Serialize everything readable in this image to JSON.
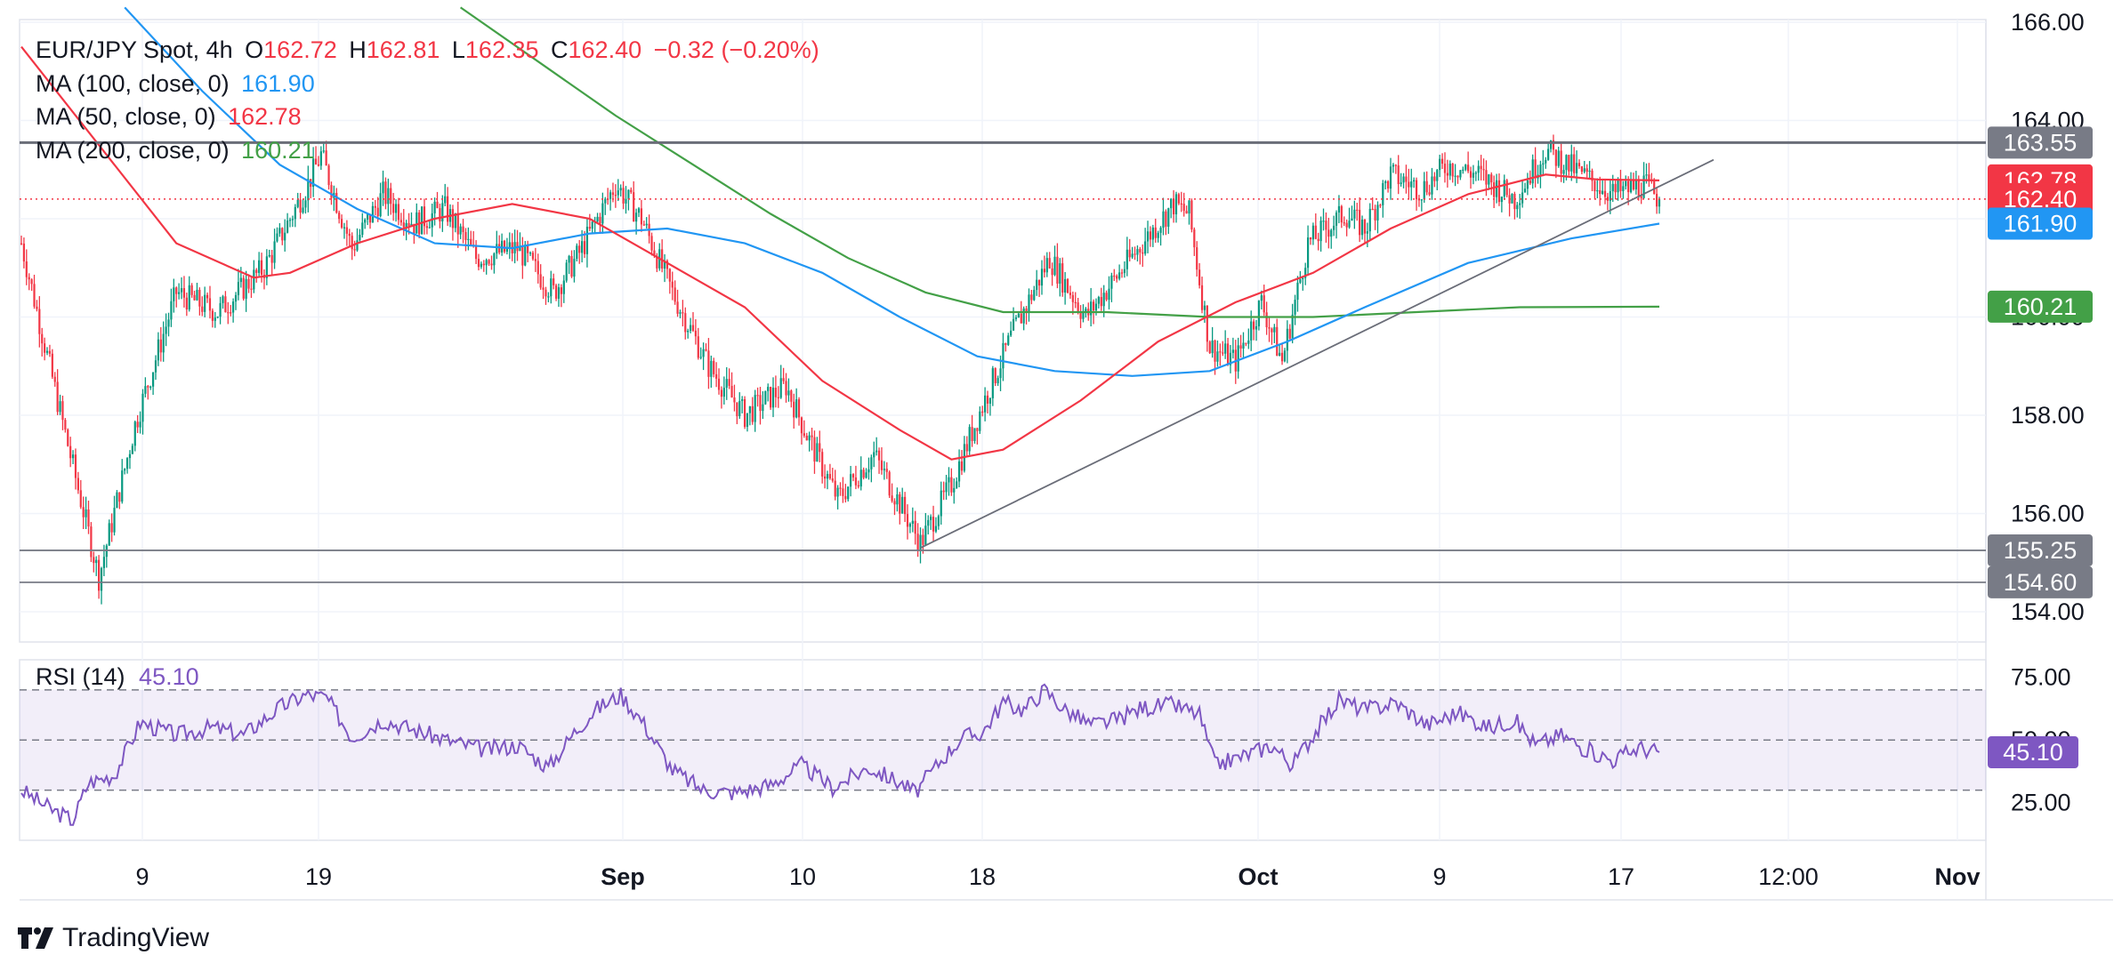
{
  "legend": {
    "symbol": "EUR/JPY Spot, 4h",
    "o_label": "O",
    "o": "162.72",
    "h_label": "H",
    "h": "162.81",
    "l_label": "L",
    "l": "162.35",
    "c_label": "C",
    "c": "162.40",
    "change": "−0.32 (−0.20%)",
    "ma100_label": "MA (100, close, 0)",
    "ma100_value": "161.90",
    "ma50_label": "MA (50, close, 0)",
    "ma50_value": "162.78",
    "ma200_label": "MA (200, close, 0)",
    "ma200_value": "160.21"
  },
  "rsi_legend": {
    "label": "RSI (14)",
    "value": "45.10"
  },
  "brand": "TradingView",
  "colors": {
    "up": "#089981",
    "down": "#f23645",
    "ma50": "#f23645",
    "ma100": "#2196f3",
    "ma200": "#43a047",
    "rsi": "#7e57c2",
    "level": "#787b86",
    "trend": "#6a6d78"
  },
  "chart_data": {
    "type": "candlestick",
    "title": "EUR/JPY Spot, 4h",
    "price_axis": {
      "ticks": [
        "166.00",
        "164.00",
        "162.00",
        "160.00",
        "158.00",
        "156.00",
        "154.00"
      ],
      "ylim": [
        153.7,
        166.2
      ]
    },
    "time_axis": {
      "ticks": [
        "9",
        "19",
        "Sep",
        "10",
        "18",
        "Oct",
        "9",
        "17",
        "12:00",
        "Nov"
      ],
      "bold_ticks": [
        "Sep",
        "Oct",
        "Nov"
      ]
    },
    "price_tags": [
      {
        "label": "163.55",
        "value": 163.55,
        "color": "#787b86"
      },
      {
        "label": "162.78",
        "value": 162.78,
        "color": "#f23645"
      },
      {
        "label": "162.40",
        "value": 162.4,
        "color": "#f23645"
      },
      {
        "label": "161.90",
        "value": 161.9,
        "color": "#2196f3"
      },
      {
        "label": "160.21",
        "value": 160.21,
        "color": "#43a047"
      },
      {
        "label": "155.25",
        "value": 155.25,
        "color": "#787b86"
      },
      {
        "label": "154.60",
        "value": 154.6,
        "color": "#787b86"
      }
    ],
    "horizontal_levels": [
      163.55,
      155.25,
      154.6
    ],
    "last_close": 162.4,
    "price_path": [
      [
        0,
        161.5
      ],
      [
        14,
        158.3
      ],
      [
        30,
        154.7
      ],
      [
        44,
        157.8
      ],
      [
        60,
        160.5
      ],
      [
        76,
        160.1
      ],
      [
        94,
        161.0
      ],
      [
        110,
        162.6
      ],
      [
        116,
        163.3
      ],
      [
        128,
        161.4
      ],
      [
        140,
        162.5
      ],
      [
        152,
        161.9
      ],
      [
        164,
        162.2
      ],
      [
        176,
        161.2
      ],
      [
        192,
        161.4
      ],
      [
        206,
        160.5
      ],
      [
        216,
        161.3
      ],
      [
        230,
        162.7
      ],
      [
        240,
        162.0
      ],
      [
        252,
        160.5
      ],
      [
        266,
        159.0
      ],
      [
        280,
        158.0
      ],
      [
        296,
        158.6
      ],
      [
        304,
        157.6
      ],
      [
        316,
        156.3
      ],
      [
        330,
        157.2
      ],
      [
        348,
        155.4
      ],
      [
        360,
        156.6
      ],
      [
        372,
        158.2
      ],
      [
        384,
        159.7
      ],
      [
        398,
        161.2
      ],
      [
        412,
        160.0
      ],
      [
        428,
        161.1
      ],
      [
        446,
        162.3
      ],
      [
        452,
        162.1
      ],
      [
        460,
        159.4
      ],
      [
        470,
        159.1
      ],
      [
        480,
        160.3
      ],
      [
        488,
        159.1
      ],
      [
        498,
        161.5
      ],
      [
        512,
        162.1
      ],
      [
        520,
        161.8
      ],
      [
        530,
        162.9
      ],
      [
        542,
        162.6
      ],
      [
        552,
        163.1
      ],
      [
        564,
        162.9
      ],
      [
        578,
        162.4
      ],
      [
        590,
        163.4
      ],
      [
        604,
        162.9
      ],
      [
        616,
        162.5
      ],
      [
        628,
        162.7
      ],
      [
        634,
        162.4
      ]
    ],
    "ma50": [
      [
        0,
        165.5
      ],
      [
        30,
        163.5
      ],
      [
        60,
        161.5
      ],
      [
        90,
        160.8
      ],
      [
        104,
        160.9
      ],
      [
        130,
        161.5
      ],
      [
        160,
        162.0
      ],
      [
        190,
        162.3
      ],
      [
        220,
        162.0
      ],
      [
        250,
        161.1
      ],
      [
        280,
        160.2
      ],
      [
        310,
        158.7
      ],
      [
        340,
        157.7
      ],
      [
        360,
        157.1
      ],
      [
        380,
        157.3
      ],
      [
        410,
        158.3
      ],
      [
        440,
        159.5
      ],
      [
        470,
        160.3
      ],
      [
        500,
        160.9
      ],
      [
        530,
        161.8
      ],
      [
        560,
        162.5
      ],
      [
        590,
        162.9
      ],
      [
        610,
        162.8
      ],
      [
        634,
        162.78
      ]
    ],
    "ma100": [
      [
        40,
        166.3
      ],
      [
        70,
        164.6
      ],
      [
        100,
        163.1
      ],
      [
        130,
        162.2
      ],
      [
        160,
        161.5
      ],
      [
        190,
        161.4
      ],
      [
        220,
        161.7
      ],
      [
        250,
        161.8
      ],
      [
        280,
        161.5
      ],
      [
        310,
        160.9
      ],
      [
        340,
        160.0
      ],
      [
        370,
        159.2
      ],
      [
        400,
        158.9
      ],
      [
        430,
        158.8
      ],
      [
        460,
        158.9
      ],
      [
        490,
        159.5
      ],
      [
        520,
        160.2
      ],
      [
        560,
        161.1
      ],
      [
        600,
        161.6
      ],
      [
        634,
        161.9
      ]
    ],
    "ma200": [
      [
        170,
        166.3
      ],
      [
        200,
        165.2
      ],
      [
        230,
        164.1
      ],
      [
        260,
        163.1
      ],
      [
        290,
        162.1
      ],
      [
        320,
        161.2
      ],
      [
        350,
        160.5
      ],
      [
        380,
        160.1
      ],
      [
        420,
        160.1
      ],
      [
        460,
        160.0
      ],
      [
        500,
        160.0
      ],
      [
        540,
        160.1
      ],
      [
        580,
        160.2
      ],
      [
        634,
        160.21
      ]
    ],
    "trendline": {
      "from": [
        348,
        155.3
      ],
      "to": [
        655,
        163.2
      ]
    },
    "rsi": {
      "label": "RSI (14)",
      "ylim": [
        10,
        82
      ],
      "levels": [
        70,
        50,
        30
      ],
      "ticks": [
        "75.00",
        "50.00",
        "25.00"
      ],
      "last": 45.1,
      "path": [
        [
          0,
          30
        ],
        [
          12,
          22
        ],
        [
          20,
          18
        ],
        [
          26,
          33
        ],
        [
          36,
          36
        ],
        [
          46,
          57
        ],
        [
          60,
          52
        ],
        [
          74,
          55
        ],
        [
          86,
          52
        ],
        [
          100,
          63
        ],
        [
          110,
          68
        ],
        [
          118,
          67
        ],
        [
          128,
          51
        ],
        [
          140,
          58
        ],
        [
          152,
          54
        ],
        [
          168,
          49
        ],
        [
          180,
          46
        ],
        [
          192,
          48
        ],
        [
          204,
          39
        ],
        [
          214,
          53
        ],
        [
          222,
          62
        ],
        [
          232,
          68
        ],
        [
          240,
          58
        ],
        [
          252,
          38
        ],
        [
          264,
          30
        ],
        [
          276,
          29
        ],
        [
          290,
          32
        ],
        [
          302,
          40
        ],
        [
          314,
          31
        ],
        [
          328,
          39
        ],
        [
          340,
          33
        ],
        [
          346,
          29
        ],
        [
          356,
          42
        ],
        [
          364,
          51
        ],
        [
          372,
          53
        ],
        [
          380,
          65
        ],
        [
          388,
          62
        ],
        [
          396,
          70
        ],
        [
          404,
          62
        ],
        [
          414,
          56
        ],
        [
          424,
          58
        ],
        [
          434,
          63
        ],
        [
          446,
          64
        ],
        [
          456,
          60
        ],
        [
          462,
          40
        ],
        [
          474,
          44
        ],
        [
          484,
          48
        ],
        [
          492,
          40
        ],
        [
          500,
          52
        ],
        [
          510,
          66
        ],
        [
          520,
          62
        ],
        [
          532,
          65
        ],
        [
          544,
          56
        ],
        [
          556,
          61
        ],
        [
          568,
          55
        ],
        [
          578,
          58
        ],
        [
          586,
          48
        ],
        [
          596,
          52
        ],
        [
          606,
          46
        ],
        [
          616,
          42
        ],
        [
          626,
          47
        ],
        [
          634,
          45.1
        ]
      ]
    }
  }
}
